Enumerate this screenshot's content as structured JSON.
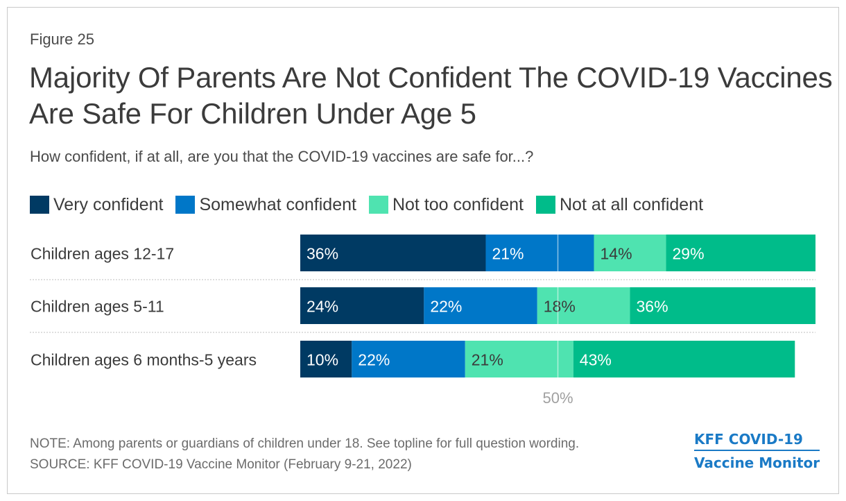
{
  "figure_label": "Figure 25",
  "title": "Majority Of Parents Are Not Confident The COVID-19 Vaccines Are Safe For Children Under Age 5",
  "subtitle": "How confident, if at all, are you that the COVID-19 vaccines are safe for...?",
  "legend": [
    {
      "label": "Very confident",
      "color": "#003a63"
    },
    {
      "label": "Somewhat confident",
      "color": "#0077c8"
    },
    {
      "label": "Not too confident",
      "color": "#4fe3b0"
    },
    {
      "label": "Not at all confident",
      "color": "#00bc8a"
    }
  ],
  "chart_data": {
    "type": "bar",
    "orientation": "horizontal",
    "stacked": true,
    "categories": [
      "Children ages 12-17",
      "Children ages 5-11",
      "Children ages 6 months-5 years"
    ],
    "series": [
      {
        "name": "Very confident",
        "values": [
          36,
          24,
          10
        ],
        "color": "#003a63",
        "label_color": "#ffffff"
      },
      {
        "name": "Somewhat confident",
        "values": [
          21,
          22,
          22
        ],
        "color": "#0077c8",
        "label_color": "#ffffff"
      },
      {
        "name": "Not too confident",
        "values": [
          14,
          18,
          21
        ],
        "color": "#4fe3b0",
        "label_color": "#3b3b3b"
      },
      {
        "name": "Not at all confident",
        "values": [
          29,
          36,
          43
        ],
        "color": "#00bc8a",
        "label_color": "#ffffff"
      }
    ],
    "value_suffix": "%",
    "xlim": [
      0,
      100
    ],
    "reference_line": {
      "value": 50,
      "label": "50%"
    }
  },
  "note": "NOTE: Among parents or guardians of children under 18. See topline for full question wording.",
  "source": "SOURCE: KFF COVID-19 Vaccine Monitor (February 9-21, 2022)",
  "logo": {
    "line1": "KFF COVID-19",
    "line2": "Vaccine Monitor"
  }
}
